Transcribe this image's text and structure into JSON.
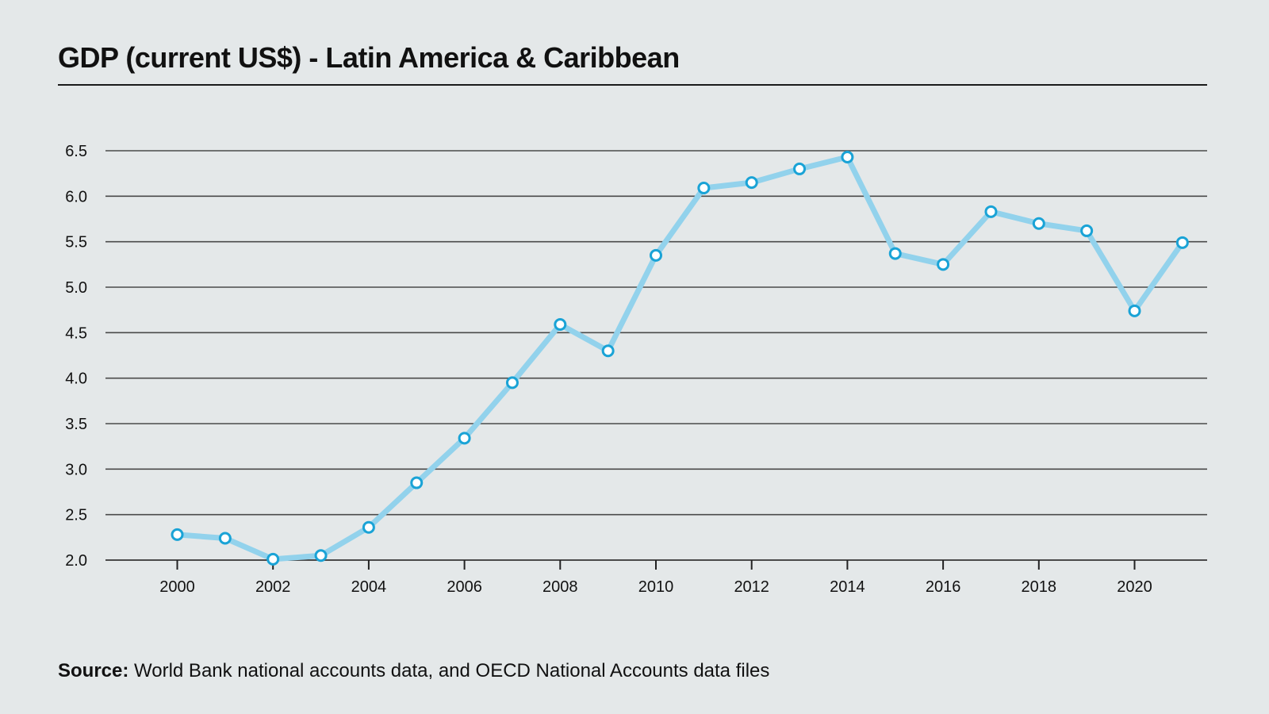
{
  "header": {
    "title": "GDP (current US$) - Latin America & Caribbean"
  },
  "footer": {
    "source_label": "Source:",
    "source_text": " World Bank national accounts data, and OECD National Accounts data files"
  },
  "colors": {
    "background": "#e4e8e9",
    "line": "#92d2ec",
    "marker_stroke": "#1aa3d6",
    "marker_fill": "#ffffff",
    "grid": "#4a4a4a",
    "text": "#111111"
  },
  "chart_data": {
    "type": "line",
    "title": "GDP (current US$) - Latin America & Caribbean",
    "xlabel": "",
    "ylabel": "",
    "x": [
      2000,
      2001,
      2002,
      2003,
      2004,
      2005,
      2006,
      2007,
      2008,
      2009,
      2010,
      2011,
      2012,
      2013,
      2014,
      2015,
      2016,
      2017,
      2018,
      2019,
      2020,
      2021
    ],
    "series": [
      {
        "name": "GDP (current US$)",
        "values": [
          2.28,
          2.24,
          2.01,
          2.05,
          2.36,
          2.85,
          3.34,
          3.95,
          4.59,
          4.3,
          5.35,
          6.09,
          6.15,
          6.3,
          6.43,
          5.37,
          5.25,
          5.83,
          5.7,
          5.62,
          4.74,
          5.49
        ]
      }
    ],
    "ylim": [
      2.0,
      6.5
    ],
    "xlim": [
      1998.5,
      2022.5
    ],
    "yticks": [
      "2.0",
      "2.5",
      "3.0",
      "3.5",
      "4.0",
      "4.5",
      "5.0",
      "5.5",
      "6.0",
      "6.5"
    ],
    "xticks": [
      "2000",
      "2002",
      "2004",
      "2006",
      "2008",
      "2010",
      "2012",
      "2014",
      "2016",
      "2018",
      "2020"
    ],
    "grid": true,
    "legend": "none",
    "source": "Source: World Bank national accounts data, and OECD National Accounts data files"
  }
}
